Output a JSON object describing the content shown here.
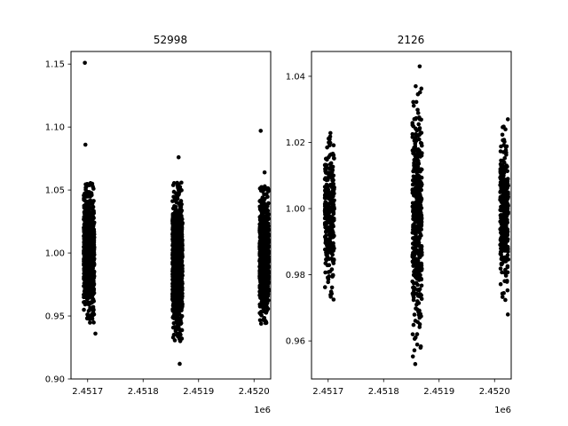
{
  "chart_data": [
    {
      "type": "scatter",
      "title": "52998",
      "xlabel": "",
      "ylabel": "",
      "x_offset_label": "1e6",
      "xlim": [
        2451670,
        2452030
      ],
      "ylim": [
        0.9,
        1.16
      ],
      "xticks": [
        2451700,
        2451800,
        2451900,
        2452000
      ],
      "xtick_labels": [
        "2.4517",
        "2.4518",
        "2.4519",
        "2.4520"
      ],
      "yticks": [
        0.9,
        0.95,
        1.0,
        1.05,
        1.1,
        1.15
      ],
      "ytick_labels": [
        "0.90",
        "0.95",
        "1.00",
        "1.05",
        "1.10",
        "1.15"
      ],
      "marker_color": "#000000",
      "clusters": [
        {
          "x_range": [
            2451693,
            2451712
          ],
          "y_center": 1.0,
          "y_spread": 0.056,
          "count": 900
        },
        {
          "x_range": [
            2451853,
            2451871
          ],
          "y_center": 0.993,
          "y_spread": 0.063,
          "count": 1100
        },
        {
          "x_range": [
            2452010,
            2452026
          ],
          "y_center": 0.998,
          "y_spread": 0.055,
          "count": 900
        }
      ],
      "outliers": [
        {
          "x": 2451695,
          "y": 1.151
        },
        {
          "x": 2451696,
          "y": 1.086
        },
        {
          "x": 2451864,
          "y": 1.076
        },
        {
          "x": 2452012,
          "y": 1.097
        },
        {
          "x": 2451866,
          "y": 0.912
        },
        {
          "x": 2452019,
          "y": 1.064
        },
        {
          "x": 2451714,
          "y": 0.936
        }
      ]
    },
    {
      "type": "scatter",
      "title": "2126",
      "xlabel": "",
      "ylabel": "",
      "x_offset_label": "1e6",
      "xlim": [
        2451670,
        2452030
      ],
      "ylim": [
        0.9485,
        1.0475
      ],
      "xticks": [
        2451700,
        2451800,
        2451900,
        2452000
      ],
      "xtick_labels": [
        "2.4517",
        "2.4518",
        "2.4519",
        "2.4520"
      ],
      "yticks": [
        0.96,
        0.98,
        1.0,
        1.02,
        1.04
      ],
      "ytick_labels": [
        "0.96",
        "0.98",
        "1.00",
        "1.02",
        "1.04"
      ],
      "marker_color": "#000000",
      "clusters": [
        {
          "x_range": [
            2451694,
            2451711
          ],
          "y_center": 0.998,
          "y_spread": 0.026,
          "count": 320
        },
        {
          "x_range": [
            2451852,
            2451869
          ],
          "y_center": 0.998,
          "y_spread": 0.043,
          "count": 450
        },
        {
          "x_range": [
            2452010,
            2452025
          ],
          "y_center": 0.999,
          "y_spread": 0.027,
          "count": 320
        }
      ],
      "outliers": [
        {
          "x": 2451865,
          "y": 1.043
        },
        {
          "x": 2451857,
          "y": 0.953
        },
        {
          "x": 2452024,
          "y": 0.968
        },
        {
          "x": 2452024,
          "y": 1.027
        }
      ]
    }
  ]
}
